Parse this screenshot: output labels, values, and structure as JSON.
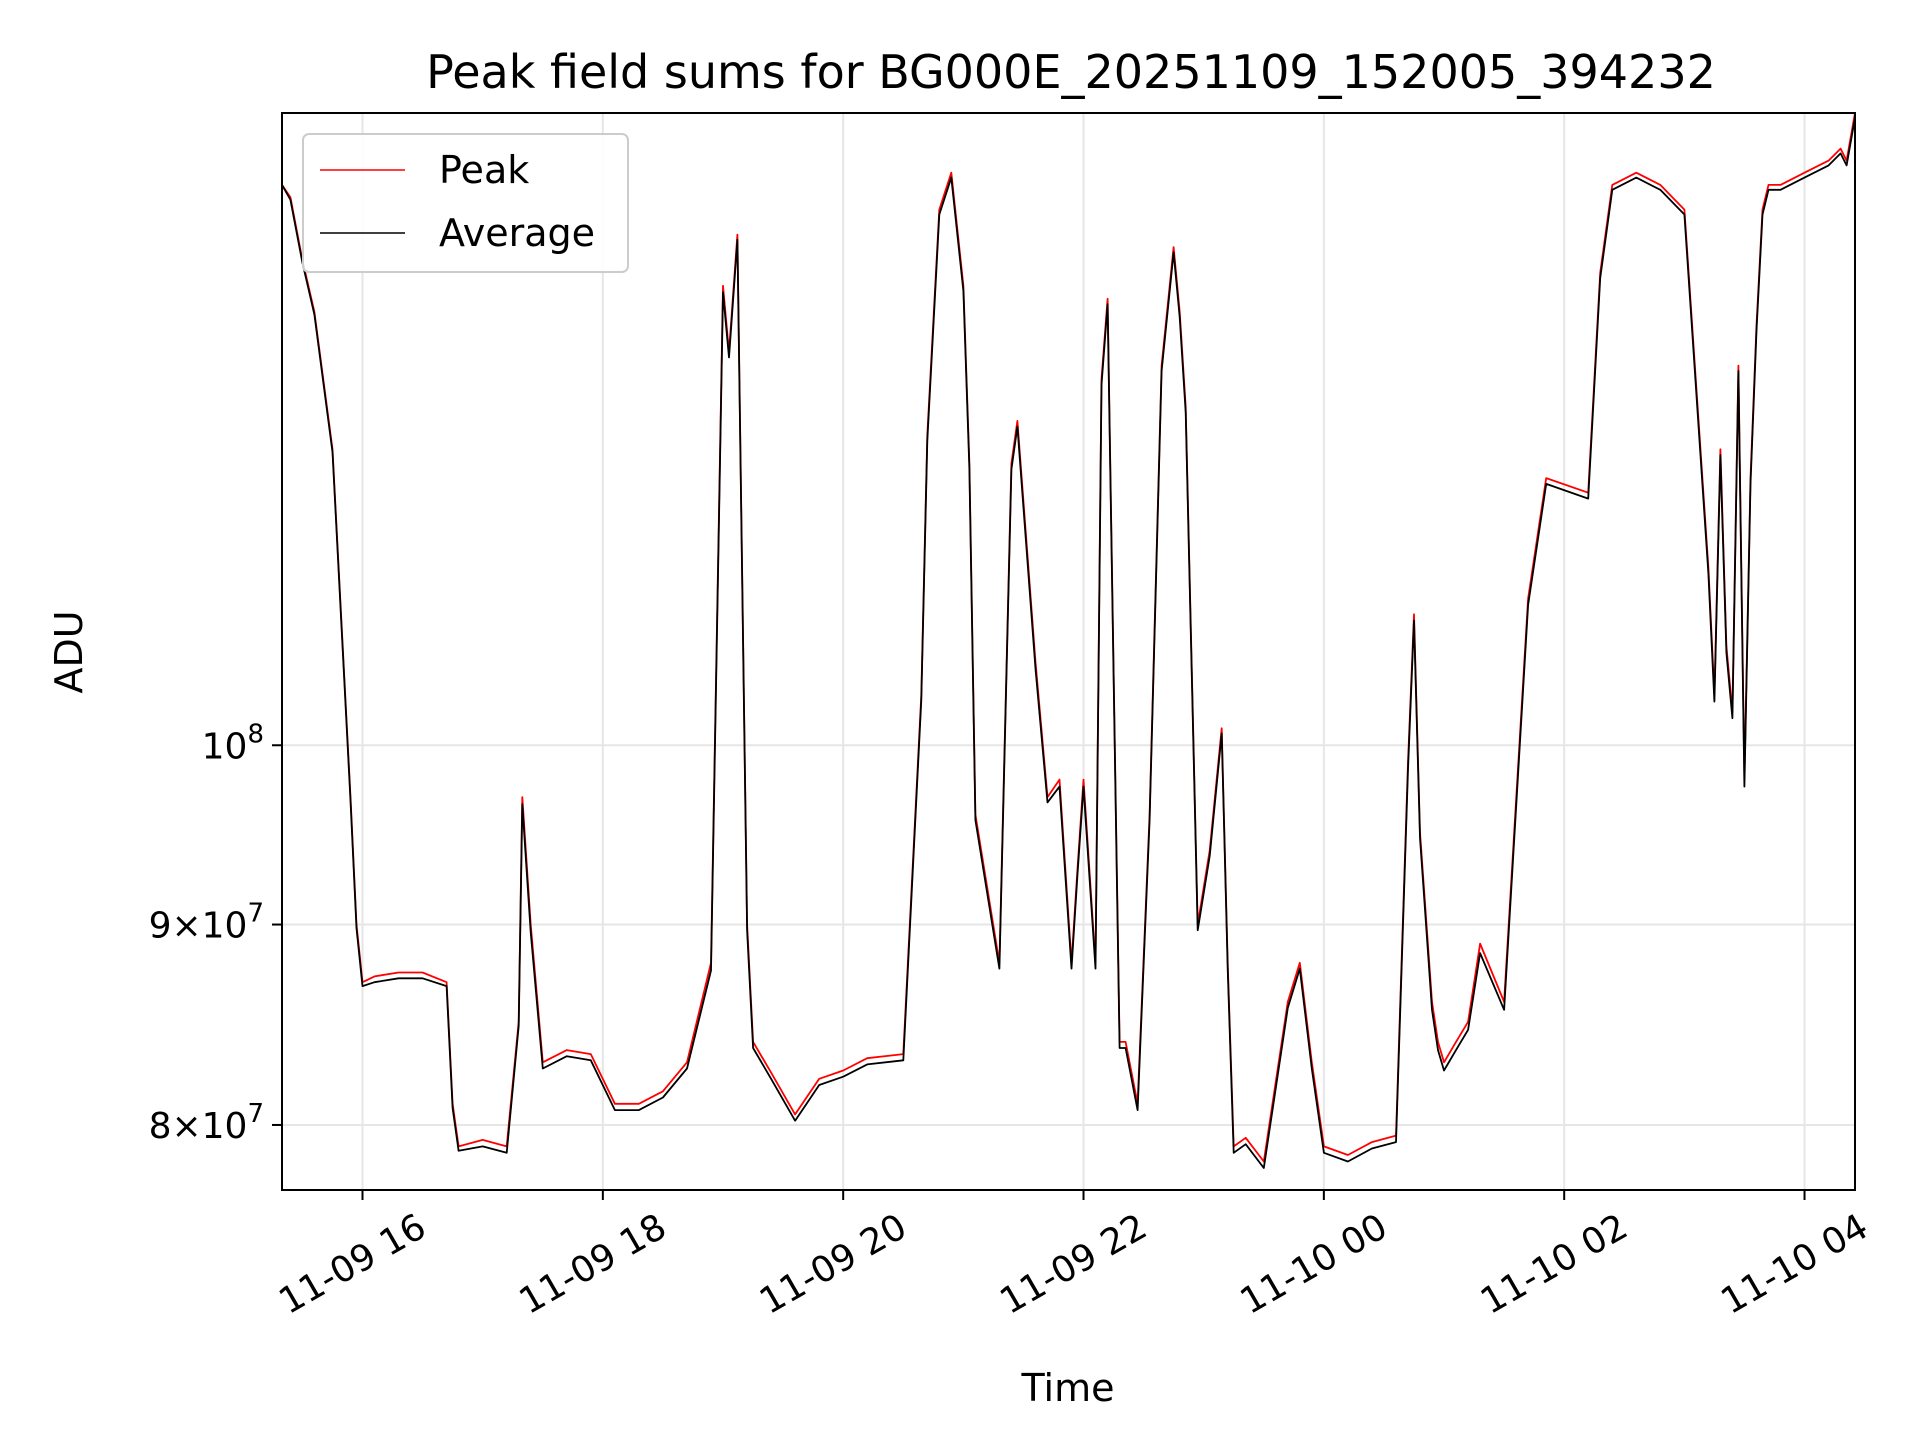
{
  "chart_data": {
    "type": "line",
    "title": "Peak field sums for BG000E_20251109_152005_394232",
    "xlabel": "Time",
    "ylabel": "ADU",
    "yscale": "log",
    "grid": true,
    "legend_position": "upper-left",
    "xlim_hours": [
      15.33,
      28.42
    ],
    "ylim": [
      77000000,
      145000000
    ],
    "x_ticks": [
      {
        "hour": 16,
        "label": "11-09 16"
      },
      {
        "hour": 18,
        "label": "11-09 18"
      },
      {
        "hour": 20,
        "label": "11-09 20"
      },
      {
        "hour": 22,
        "label": "11-09 22"
      },
      {
        "hour": 24,
        "label": "11-10 00"
      },
      {
        "hour": 26,
        "label": "11-10 02"
      },
      {
        "hour": 28,
        "label": "11-10 04"
      }
    ],
    "y_ticks": [
      {
        "value": 80000000,
        "base": "8×10",
        "exp": "7"
      },
      {
        "value": 90000000,
        "base": "9×10",
        "exp": "7"
      },
      {
        "value": 100000000,
        "base": "10",
        "exp": "8"
      }
    ],
    "x_hours": [
      15.33,
      15.4,
      15.5,
      15.6,
      15.75,
      15.9,
      15.95,
      16.0,
      16.1,
      16.3,
      16.5,
      16.7,
      16.75,
      16.8,
      17.0,
      17.2,
      17.3,
      17.33,
      17.4,
      17.5,
      17.7,
      17.9,
      18.1,
      18.3,
      18.5,
      18.7,
      18.9,
      19.0,
      19.05,
      19.12,
      19.2,
      19.25,
      19.4,
      19.6,
      19.8,
      20.0,
      20.2,
      20.5,
      20.65,
      20.7,
      20.8,
      20.9,
      21.0,
      21.05,
      21.1,
      21.3,
      21.4,
      21.45,
      21.6,
      21.7,
      21.8,
      21.9,
      21.95,
      22.0,
      22.1,
      22.15,
      22.2,
      22.3,
      22.35,
      22.45,
      22.55,
      22.65,
      22.75,
      22.8,
      22.85,
      22.95,
      23.05,
      23.15,
      23.2,
      23.25,
      23.35,
      23.5,
      23.7,
      23.8,
      23.9,
      24.0,
      24.2,
      24.4,
      24.6,
      24.7,
      24.75,
      24.8,
      24.9,
      24.95,
      25.0,
      25.1,
      25.2,
      25.3,
      25.5,
      25.7,
      25.85,
      26.2,
      26.3,
      26.4,
      26.6,
      26.8,
      27.0,
      27.2,
      27.25,
      27.3,
      27.35,
      27.4,
      27.45,
      27.5,
      27.55,
      27.6,
      27.65,
      27.7,
      27.75,
      27.8,
      28.0,
      28.2,
      28.3,
      28.35,
      28.42
    ],
    "series": [
      {
        "name": "Peak",
        "color": "#ff0000",
        "values": [
          139000000,
          138000000,
          133000000,
          129000000,
          119000000,
          97000000,
          90000000,
          87000000,
          87300000,
          87500000,
          87500000,
          87000000,
          81000000,
          79000000,
          79300000,
          79000000,
          85000000,
          97000000,
          90000000,
          83000000,
          83600000,
          83400000,
          81000000,
          81000000,
          81600000,
          83000000,
          88000000,
          131000000,
          126000000,
          135000000,
          90000000,
          84000000,
          82500000,
          80500000,
          82200000,
          82600000,
          83200000,
          83400000,
          103000000,
          120000000,
          137000000,
          140000000,
          131000000,
          118000000,
          96000000,
          88000000,
          118000000,
          121000000,
          105000000,
          97000000,
          98000000,
          88000000,
          93000000,
          98000000,
          88000000,
          124000000,
          130000000,
          84000000,
          84000000,
          81000000,
          96000000,
          125000000,
          134000000,
          129000000,
          122000000,
          90000000,
          94000000,
          101000000,
          88000000,
          79000000,
          79400000,
          78300000,
          86000000,
          88000000,
          83000000,
          79000000,
          78600000,
          79200000,
          79500000,
          99000000,
          108000000,
          95000000,
          86000000,
          84000000,
          83000000,
          84000000,
          85000000,
          89000000,
          86000000,
          109000000,
          117000000,
          116000000,
          132000000,
          139000000,
          140000000,
          139000000,
          137000000,
          111000000,
          103000000,
          119000000,
          106000000,
          102000000,
          125000000,
          98000000,
          117000000,
          128000000,
          137000000,
          139000000,
          139000000,
          139000000,
          140000000,
          141000000,
          142000000,
          141000000,
          145000000
        ]
      },
      {
        "name": "Average",
        "color": "#000000",
        "values": [
          139000000,
          137800000,
          132800000,
          128800000,
          118800000,
          96800000,
          89800000,
          86800000,
          87000000,
          87200000,
          87200000,
          86800000,
          80800000,
          78800000,
          79000000,
          78700000,
          84800000,
          96600000,
          89600000,
          82700000,
          83300000,
          83100000,
          80700000,
          80700000,
          81300000,
          82700000,
          87600000,
          130500000,
          125600000,
          134600000,
          89700000,
          83700000,
          82200000,
          80200000,
          81900000,
          82300000,
          82900000,
          83100000,
          102700000,
          119600000,
          136600000,
          139600000,
          130600000,
          117600000,
          95700000,
          87700000,
          117600000,
          120600000,
          104600000,
          96700000,
          97600000,
          87700000,
          92700000,
          97600000,
          87700000,
          123600000,
          129600000,
          83700000,
          83700000,
          80700000,
          95700000,
          124600000,
          133600000,
          128600000,
          121600000,
          89700000,
          93700000,
          100700000,
          87700000,
          78700000,
          79100000,
          78000000,
          85700000,
          87700000,
          82700000,
          78700000,
          78300000,
          78900000,
          79200000,
          98600000,
          107600000,
          94700000,
          85600000,
          83600000,
          82600000,
          83600000,
          84600000,
          88500000,
          85600000,
          108600000,
          116600000,
          115600000,
          131600000,
          138600000,
          139600000,
          138600000,
          136600000,
          110600000,
          102600000,
          118600000,
          105600000,
          101600000,
          124600000,
          97600000,
          116600000,
          127600000,
          136600000,
          138600000,
          138600000,
          138600000,
          139600000,
          140600000,
          141600000,
          140600000,
          144600000
        ]
      }
    ]
  }
}
